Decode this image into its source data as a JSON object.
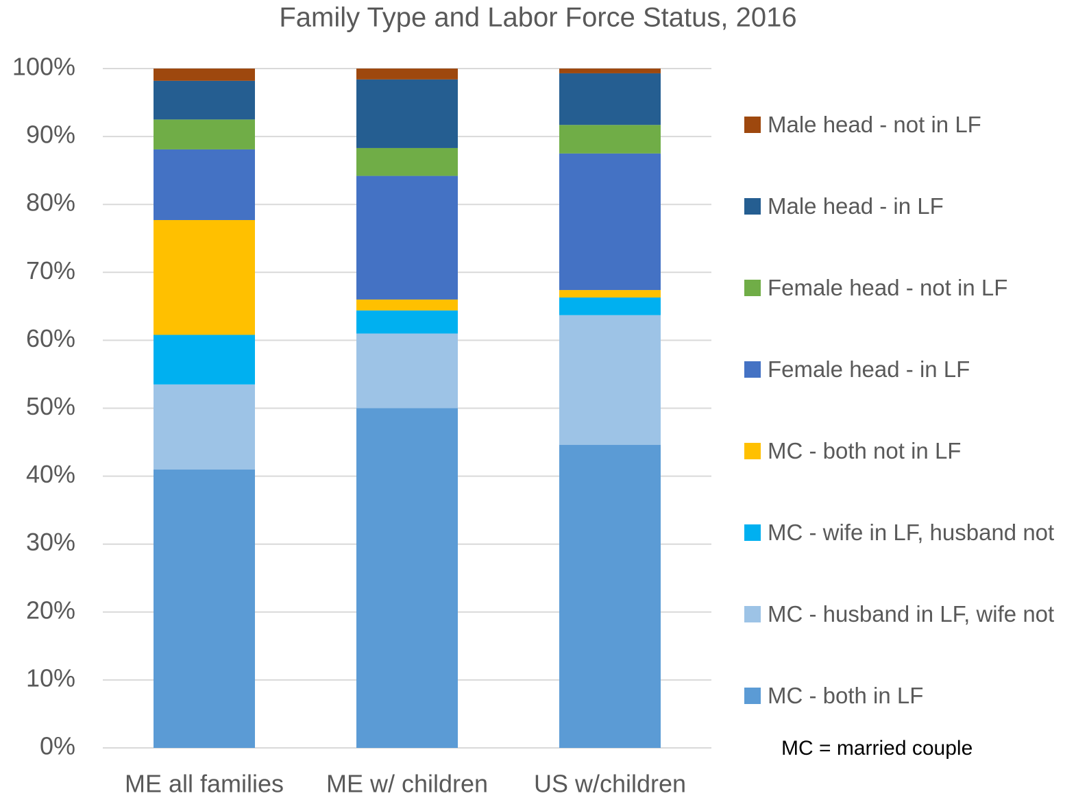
{
  "chart_data": {
    "type": "stacked_bar",
    "title": "Family Type and Labor Force Status, 2016",
    "categories": [
      "ME all families",
      "ME w/ children",
      "US w/children"
    ],
    "series": [
      {
        "name": "MC - both in LF",
        "color": "#5b9bd5",
        "values": [
          41,
          50,
          44.6
        ]
      },
      {
        "name": "MC - husband in LF, wife not",
        "color": "#9dc3e6",
        "values": [
          12.5,
          11,
          19.1
        ]
      },
      {
        "name": "MC - wife in LF, husband not",
        "color": "#00b0f0",
        "values": [
          7.3,
          3.4,
          2.6
        ]
      },
      {
        "name": "MC - both not in LF",
        "color": "#ffc000",
        "values": [
          16.9,
          1.6,
          1.1
        ]
      },
      {
        "name": "Female head - in LF",
        "color": "#4472c4",
        "values": [
          10.4,
          18.2,
          20.1
        ]
      },
      {
        "name": "Female head - not in LF",
        "color": "#70ad47",
        "values": [
          4.4,
          4.1,
          4.2
        ]
      },
      {
        "name": "Male head - in LF",
        "color": "#255e91",
        "values": [
          5.7,
          10.1,
          7.6
        ]
      },
      {
        "name": "Male head - not in LF",
        "color": "#9e480e",
        "values": [
          1.8,
          1.6,
          0.7
        ]
      }
    ],
    "ylim": [
      0,
      100
    ],
    "yticks": [
      {
        "value": 0,
        "label": "0%"
      },
      {
        "value": 10,
        "label": "10%"
      },
      {
        "value": 20,
        "label": "20%"
      },
      {
        "value": 30,
        "label": "30%"
      },
      {
        "value": 40,
        "label": "40%"
      },
      {
        "value": 50,
        "label": "50%"
      },
      {
        "value": 60,
        "label": "60%"
      },
      {
        "value": 70,
        "label": "70%"
      },
      {
        "value": 80,
        "label": "80%"
      },
      {
        "value": 90,
        "label": "90%"
      },
      {
        "value": 100,
        "label": "100%"
      }
    ],
    "grid": true,
    "legend": "right",
    "annotation": "MC = married couple"
  }
}
